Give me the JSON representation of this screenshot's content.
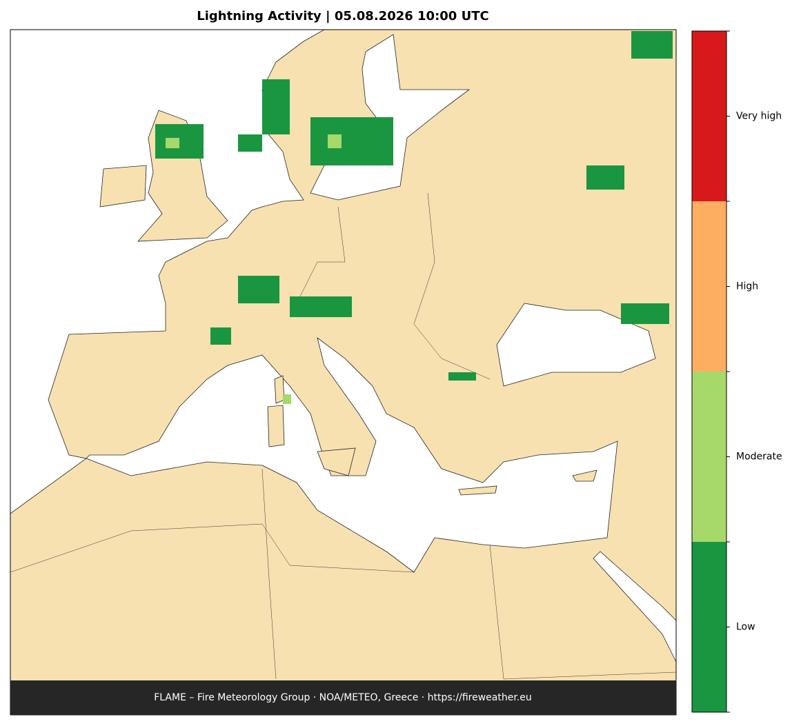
{
  "title": "Lightning Activity  |  05.08.2026 10:00 UTC",
  "footer": "FLAME – Fire Meteorology Group · NOA/METEO, Greece · https://fireweather.eu",
  "colorbar": {
    "levels": [
      {
        "label": "Low",
        "color": "#1a9641"
      },
      {
        "label": "Moderate",
        "color": "#a6d96a"
      },
      {
        "label": "High",
        "color": "#fdae61"
      },
      {
        "label": "Very high",
        "color": "#d7191c"
      }
    ]
  }
}
